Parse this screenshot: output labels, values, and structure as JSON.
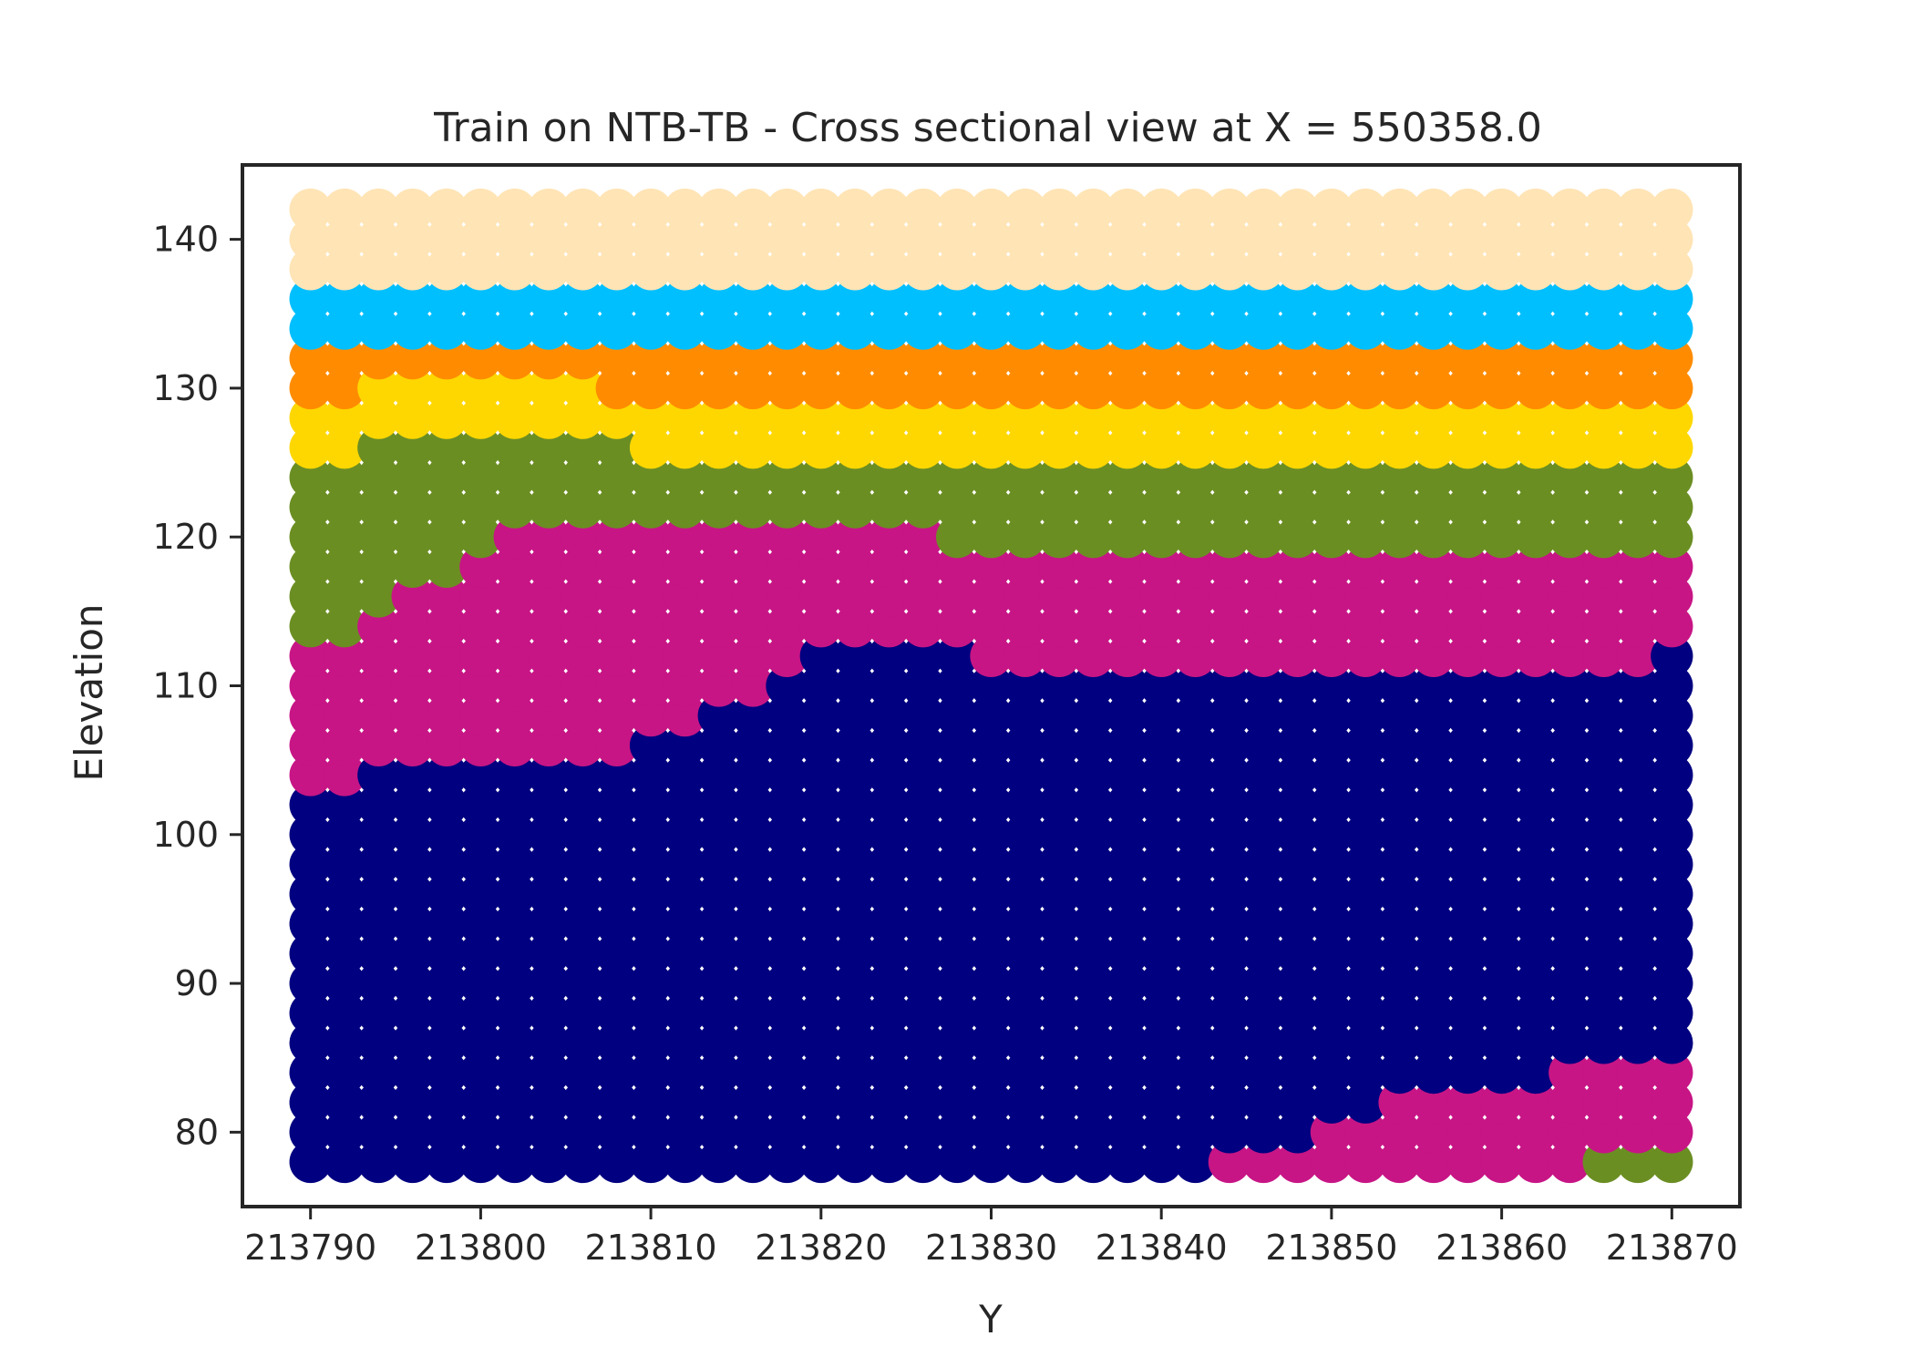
{
  "chart_data": {
    "type": "scatter",
    "title": "Train on NTB-TB - Cross sectional view at X = 550358.0",
    "xlabel": "Y",
    "ylabel": "Elevation",
    "xlim": [
      213786,
      213874
    ],
    "ylim": [
      75,
      145
    ],
    "xticks": [
      213790,
      213800,
      213810,
      213820,
      213830,
      213840,
      213850,
      213860,
      213870
    ],
    "yticks": [
      80,
      90,
      100,
      110,
      120,
      130,
      140
    ],
    "grid": false,
    "legend": "none",
    "grid_x": {
      "start": 213790,
      "step": 2,
      "count": 41
    },
    "grid_z": {
      "start": 78,
      "step": 2,
      "count": 33
    },
    "layer_colors": {
      "navy": "#000080",
      "magenta": "#C71585",
      "olive": "#6B8E23",
      "gold": "#FFD700",
      "orange": "#FF8C00",
      "skyblue": "#00BFFF",
      "wheat": "#FFE4B5"
    },
    "columns": [
      {
        "y_from": 213790,
        "y_to": 213790,
        "layers": [
          [
            "navy",
            78,
            102
          ],
          [
            "magenta",
            104,
            112
          ],
          [
            "olive",
            114,
            124
          ],
          [
            "gold",
            126,
            128
          ],
          [
            "orange",
            130,
            132
          ],
          [
            "skyblue",
            134,
            136
          ],
          [
            "wheat",
            138,
            142
          ]
        ]
      },
      {
        "y_from": 213792,
        "y_to": 213792,
        "layers": [
          [
            "navy",
            78,
            102
          ],
          [
            "magenta",
            104,
            112
          ],
          [
            "olive",
            114,
            124
          ],
          [
            "gold",
            126,
            128
          ],
          [
            "orange",
            130,
            132
          ],
          [
            "skyblue",
            134,
            136
          ],
          [
            "wheat",
            138,
            142
          ]
        ]
      },
      {
        "y_from": 213794,
        "y_to": 213794,
        "layers": [
          [
            "navy",
            78,
            104
          ],
          [
            "magenta",
            106,
            114
          ],
          [
            "olive",
            116,
            126
          ],
          [
            "gold",
            128,
            130
          ],
          [
            "orange",
            132,
            132
          ],
          [
            "skyblue",
            134,
            136
          ],
          [
            "wheat",
            138,
            142
          ]
        ]
      },
      {
        "y_from": 213796,
        "y_to": 213798,
        "layers": [
          [
            "navy",
            78,
            104
          ],
          [
            "magenta",
            106,
            116
          ],
          [
            "olive",
            118,
            126
          ],
          [
            "gold",
            128,
            130
          ],
          [
            "orange",
            132,
            132
          ],
          [
            "skyblue",
            134,
            136
          ],
          [
            "wheat",
            138,
            142
          ]
        ]
      },
      {
        "y_from": 213800,
        "y_to": 213800,
        "layers": [
          [
            "navy",
            78,
            104
          ],
          [
            "magenta",
            106,
            118
          ],
          [
            "olive",
            120,
            126
          ],
          [
            "gold",
            128,
            130
          ],
          [
            "orange",
            132,
            132
          ],
          [
            "skyblue",
            134,
            136
          ],
          [
            "wheat",
            138,
            142
          ]
        ]
      },
      {
        "y_from": 213802,
        "y_to": 213806,
        "layers": [
          [
            "navy",
            78,
            104
          ],
          [
            "magenta",
            106,
            120
          ],
          [
            "olive",
            122,
            126
          ],
          [
            "gold",
            128,
            130
          ],
          [
            "orange",
            132,
            132
          ],
          [
            "skyblue",
            134,
            136
          ],
          [
            "wheat",
            138,
            142
          ]
        ]
      },
      {
        "y_from": 213808,
        "y_to": 213808,
        "layers": [
          [
            "navy",
            78,
            104
          ],
          [
            "magenta",
            106,
            120
          ],
          [
            "olive",
            122,
            126
          ],
          [
            "gold",
            128,
            128
          ],
          [
            "orange",
            130,
            132
          ],
          [
            "skyblue",
            134,
            136
          ],
          [
            "wheat",
            138,
            142
          ]
        ]
      },
      {
        "y_from": 213810,
        "y_to": 213812,
        "layers": [
          [
            "navy",
            78,
            106
          ],
          [
            "magenta",
            108,
            120
          ],
          [
            "olive",
            122,
            124
          ],
          [
            "gold",
            126,
            128
          ],
          [
            "orange",
            130,
            132
          ],
          [
            "skyblue",
            134,
            136
          ],
          [
            "wheat",
            138,
            142
          ]
        ]
      },
      {
        "y_from": 213814,
        "y_to": 213816,
        "layers": [
          [
            "navy",
            78,
            108
          ],
          [
            "magenta",
            110,
            120
          ],
          [
            "olive",
            122,
            124
          ],
          [
            "gold",
            126,
            128
          ],
          [
            "orange",
            130,
            132
          ],
          [
            "skyblue",
            134,
            136
          ],
          [
            "wheat",
            138,
            142
          ]
        ]
      },
      {
        "y_from": 213818,
        "y_to": 213818,
        "layers": [
          [
            "navy",
            78,
            110
          ],
          [
            "magenta",
            112,
            120
          ],
          [
            "olive",
            122,
            124
          ],
          [
            "gold",
            126,
            128
          ],
          [
            "orange",
            130,
            132
          ],
          [
            "skyblue",
            134,
            136
          ],
          [
            "wheat",
            138,
            142
          ]
        ]
      },
      {
        "y_from": 213820,
        "y_to": 213826,
        "layers": [
          [
            "navy",
            78,
            112
          ],
          [
            "magenta",
            114,
            120
          ],
          [
            "olive",
            122,
            124
          ],
          [
            "gold",
            126,
            128
          ],
          [
            "orange",
            130,
            132
          ],
          [
            "skyblue",
            134,
            136
          ],
          [
            "wheat",
            138,
            142
          ]
        ]
      },
      {
        "y_from": 213828,
        "y_to": 213828,
        "layers": [
          [
            "navy",
            78,
            112
          ],
          [
            "magenta",
            114,
            118
          ],
          [
            "olive",
            120,
            124
          ],
          [
            "gold",
            126,
            128
          ],
          [
            "orange",
            130,
            132
          ],
          [
            "skyblue",
            134,
            136
          ],
          [
            "wheat",
            138,
            142
          ]
        ]
      },
      {
        "y_from": 213830,
        "y_to": 213842,
        "layers": [
          [
            "navy",
            78,
            110
          ],
          [
            "magenta",
            112,
            118
          ],
          [
            "olive",
            120,
            124
          ],
          [
            "gold",
            126,
            128
          ],
          [
            "orange",
            130,
            132
          ],
          [
            "skyblue",
            134,
            136
          ],
          [
            "wheat",
            138,
            142
          ]
        ]
      },
      {
        "y_from": 213844,
        "y_to": 213848,
        "layers": [
          [
            "magenta",
            78,
            78
          ],
          [
            "navy",
            80,
            110
          ],
          [
            "magenta",
            112,
            118
          ],
          [
            "olive",
            120,
            124
          ],
          [
            "gold",
            126,
            128
          ],
          [
            "orange",
            130,
            132
          ],
          [
            "skyblue",
            134,
            136
          ],
          [
            "wheat",
            138,
            142
          ]
        ]
      },
      {
        "y_from": 213850,
        "y_to": 213852,
        "layers": [
          [
            "magenta",
            78,
            80
          ],
          [
            "navy",
            82,
            110
          ],
          [
            "magenta",
            112,
            118
          ],
          [
            "olive",
            120,
            124
          ],
          [
            "gold",
            126,
            128
          ],
          [
            "orange",
            130,
            132
          ],
          [
            "skyblue",
            134,
            136
          ],
          [
            "wheat",
            138,
            142
          ]
        ]
      },
      {
        "y_from": 213854,
        "y_to": 213862,
        "layers": [
          [
            "magenta",
            78,
            82
          ],
          [
            "navy",
            84,
            110
          ],
          [
            "magenta",
            112,
            118
          ],
          [
            "olive",
            120,
            124
          ],
          [
            "gold",
            126,
            128
          ],
          [
            "orange",
            130,
            132
          ],
          [
            "skyblue",
            134,
            136
          ],
          [
            "wheat",
            138,
            142
          ]
        ]
      },
      {
        "y_from": 213864,
        "y_to": 213864,
        "layers": [
          [
            "magenta",
            78,
            84
          ],
          [
            "navy",
            86,
            110
          ],
          [
            "magenta",
            112,
            118
          ],
          [
            "olive",
            120,
            124
          ],
          [
            "gold",
            126,
            128
          ],
          [
            "orange",
            130,
            132
          ],
          [
            "skyblue",
            134,
            136
          ],
          [
            "wheat",
            138,
            142
          ]
        ]
      },
      {
        "y_from": 213866,
        "y_to": 213868,
        "layers": [
          [
            "olive",
            78,
            78
          ],
          [
            "magenta",
            80,
            84
          ],
          [
            "navy",
            86,
            110
          ],
          [
            "magenta",
            112,
            118
          ],
          [
            "olive",
            120,
            124
          ],
          [
            "gold",
            126,
            128
          ],
          [
            "orange",
            130,
            132
          ],
          [
            "skyblue",
            134,
            136
          ],
          [
            "wheat",
            138,
            142
          ]
        ]
      },
      {
        "y_from": 213870,
        "y_to": 213870,
        "layers": [
          [
            "olive",
            78,
            78
          ],
          [
            "magenta",
            80,
            84
          ],
          [
            "navy",
            86,
            112
          ],
          [
            "magenta",
            114,
            118
          ],
          [
            "olive",
            120,
            124
          ],
          [
            "gold",
            126,
            128
          ],
          [
            "orange",
            130,
            132
          ],
          [
            "skyblue",
            134,
            136
          ],
          [
            "wheat",
            138,
            142
          ]
        ]
      }
    ]
  }
}
